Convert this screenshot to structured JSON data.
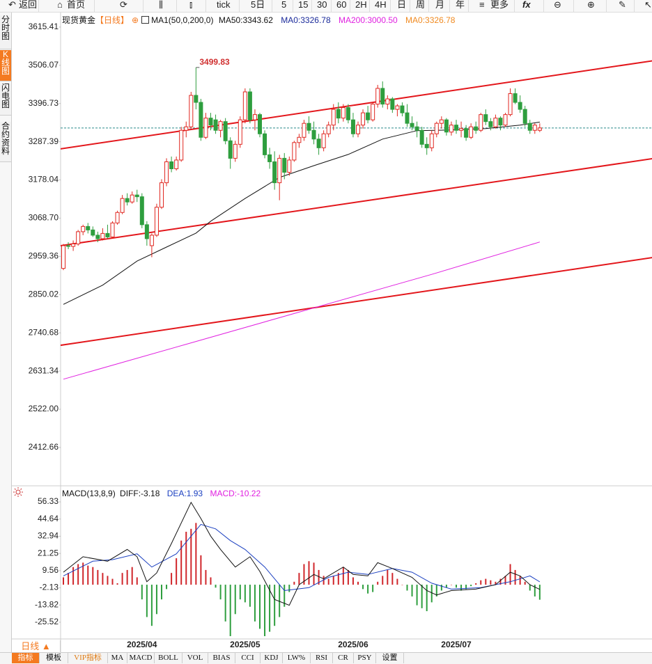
{
  "toolbar": [
    "返回",
    "首页",
    "tick",
    "5日",
    "5",
    "15",
    "30",
    "60",
    "2H",
    "4H",
    "日",
    "周",
    "月",
    "年",
    "更多",
    "fx"
  ],
  "side_tabs": [
    "分时图",
    "K线图",
    "闪电图",
    "合约资料"
  ],
  "legend": {
    "symbol": "现货黄金",
    "period": "【日线】",
    "ma_params": "MA1(50,0,200,0)",
    "ma50": "MA50:3343.62",
    "ma0": "MA0:3326.78",
    "ma200": "MA200:3000.50",
    "ma0b": "MA0:3326.78"
  },
  "macd_legend": {
    "params": "MACD(13,8,9)",
    "diff": "DIFF:-3.18",
    "dea": "DEA:1.93",
    "macd": "MACD:-10.22"
  },
  "period_button": "日线 ▲",
  "bottom_tabs": [
    "指标",
    "模板",
    "VIP指标",
    "MA",
    "MACD",
    "BOLL",
    "VOL",
    "BIAS",
    "CCI",
    "KDJ",
    "LW%",
    "RSI",
    "CR",
    "PSY",
    "设置"
  ],
  "chart_data": [
    {
      "type": "candlestick",
      "up_color": "#e0261f",
      "down_color": "#2e9e3e",
      "categories": [
        null,
        null,
        null,
        null,
        null,
        null,
        null,
        null,
        null,
        null,
        null,
        null,
        null,
        null,
        null,
        null,
        "2025/04",
        null,
        null,
        null,
        null,
        null,
        null,
        null,
        null,
        null,
        null,
        null,
        null,
        null,
        null,
        null,
        null,
        null,
        null,
        null,
        null,
        "2025/05",
        null,
        null,
        null,
        null,
        null,
        null,
        null,
        null,
        null,
        null,
        null,
        null,
        null,
        null,
        null,
        null,
        null,
        null,
        null,
        null,
        null,
        "2025/06",
        null,
        null,
        null,
        null,
        null,
        null,
        null,
        null,
        null,
        null,
        null,
        null,
        null,
        null,
        null,
        null,
        null,
        null,
        null,
        null,
        "2025/07",
        null,
        null,
        null,
        null,
        null,
        null,
        null,
        null,
        null,
        null,
        null,
        null,
        null,
        null,
        null,
        null,
        null
      ],
      "ohlc": [
        [
          2925,
          2995,
          2920,
          2990
        ],
        [
          2990,
          3000,
          2980,
          2988
        ],
        [
          2988,
          3005,
          2975,
          2995
        ],
        [
          2995,
          3035,
          2990,
          3030
        ],
        [
          3030,
          3050,
          3020,
          3045
        ],
        [
          3045,
          3055,
          3025,
          3035
        ],
        [
          3035,
          3045,
          3015,
          3020
        ],
        [
          3020,
          3030,
          3000,
          3010
        ],
        [
          3010,
          3040,
          3005,
          3025
        ],
        [
          3025,
          3050,
          3010,
          3015
        ],
        [
          3015,
          3060,
          3010,
          3055
        ],
        [
          3055,
          3090,
          3050,
          3085
        ],
        [
          3085,
          3135,
          3080,
          3125
        ],
        [
          3125,
          3140,
          3105,
          3115
        ],
        [
          3115,
          3145,
          3110,
          3135
        ],
        [
          3135,
          3150,
          3115,
          3130
        ],
        [
          3130,
          3140,
          3040,
          3050
        ],
        [
          3050,
          3060,
          2990,
          3010
        ],
        [
          2990,
          3025,
          2957,
          3020
        ],
        [
          3020,
          3110,
          3015,
          3100
        ],
        [
          3100,
          3180,
          3095,
          3170
        ],
        [
          3170,
          3240,
          3160,
          3230
        ],
        [
          3230,
          3245,
          3200,
          3210
        ],
        [
          3210,
          3245,
          3205,
          3235
        ],
        [
          3235,
          3330,
          3230,
          3320
        ],
        [
          3320,
          3345,
          3300,
          3330
        ],
        [
          3330,
          3430,
          3325,
          3420
        ],
        [
          3420,
          3499.83,
          3380,
          3400
        ],
        [
          3400,
          3410,
          3290,
          3300
        ],
        [
          3300,
          3370,
          3295,
          3355
        ],
        [
          3355,
          3370,
          3320,
          3335
        ],
        [
          3350,
          3365,
          3310,
          3320
        ],
        [
          3320,
          3350,
          3300,
          3345
        ],
        [
          3345,
          3355,
          3280,
          3290
        ],
        [
          3290,
          3300,
          3210,
          3240
        ],
        [
          3240,
          3290,
          3230,
          3280
        ],
        [
          3280,
          3360,
          3270,
          3350
        ],
        [
          3350,
          3440,
          3340,
          3430
        ],
        [
          3430,
          3440,
          3340,
          3350
        ],
        [
          3350,
          3380,
          3320,
          3365
        ],
        [
          3365,
          3370,
          3300,
          3310
        ],
        [
          3310,
          3320,
          3240,
          3250
        ],
        [
          3250,
          3270,
          3210,
          3230
        ],
        [
          3230,
          3260,
          3150,
          3170
        ],
        [
          3170,
          3250,
          3120,
          3240
        ],
        [
          3240,
          3255,
          3180,
          3200
        ],
        [
          3200,
          3245,
          3190,
          3235
        ],
        [
          3235,
          3290,
          3230,
          3285
        ],
        [
          3285,
          3310,
          3270,
          3300
        ],
        [
          3300,
          3350,
          3290,
          3340
        ],
        [
          3340,
          3360,
          3310,
          3320
        ],
        [
          3320,
          3345,
          3280,
          3295
        ],
        [
          3295,
          3310,
          3250,
          3270
        ],
        [
          3270,
          3320,
          3260,
          3310
        ],
        [
          3310,
          3345,
          3300,
          3335
        ],
        [
          3335,
          3395,
          3320,
          3380
        ],
        [
          3380,
          3400,
          3340,
          3355
        ],
        [
          3355,
          3395,
          3345,
          3385
        ],
        [
          3385,
          3395,
          3340,
          3350
        ],
        [
          3350,
          3370,
          3300,
          3310
        ],
        [
          3310,
          3345,
          3300,
          3335
        ],
        [
          3335,
          3380,
          3325,
          3370
        ],
        [
          3370,
          3390,
          3340,
          3350
        ],
        [
          3350,
          3400,
          3345,
          3395
        ],
        [
          3395,
          3450,
          3385,
          3440
        ],
        [
          3440,
          3460,
          3385,
          3395
        ],
        [
          3395,
          3420,
          3380,
          3410
        ],
        [
          3410,
          3415,
          3370,
          3380
        ],
        [
          3380,
          3395,
          3360,
          3390
        ],
        [
          3390,
          3400,
          3360,
          3370
        ],
        [
          3370,
          3395,
          3330,
          3340
        ],
        [
          3340,
          3360,
          3320,
          3330
        ],
        [
          3330,
          3345,
          3300,
          3320
        ],
        [
          3320,
          3330,
          3270,
          3280
        ],
        [
          3280,
          3300,
          3250,
          3270
        ],
        [
          3270,
          3320,
          3260,
          3310
        ],
        [
          3310,
          3345,
          3300,
          3340
        ],
        [
          3340,
          3360,
          3325,
          3350
        ],
        [
          3350,
          3355,
          3305,
          3315
        ],
        [
          3315,
          3345,
          3305,
          3335
        ],
        [
          3335,
          3350,
          3310,
          3320
        ],
        [
          3320,
          3345,
          3300,
          3325
        ],
        [
          3325,
          3335,
          3290,
          3300
        ],
        [
          3300,
          3340,
          3295,
          3330
        ],
        [
          3330,
          3345,
          3310,
          3320
        ],
        [
          3320,
          3370,
          3315,
          3365
        ],
        [
          3365,
          3380,
          3335,
          3345
        ],
        [
          3345,
          3355,
          3320,
          3330
        ],
        [
          3330,
          3365,
          3325,
          3355
        ],
        [
          3355,
          3360,
          3320,
          3335
        ],
        [
          3335,
          3370,
          3330,
          3365
        ],
        [
          3365,
          3440,
          3360,
          3425
        ],
        [
          3425,
          3440,
          3395,
          3400
        ],
        [
          3400,
          3420,
          3370,
          3380
        ],
        [
          3380,
          3390,
          3330,
          3340
        ],
        [
          3340,
          3350,
          3310,
          3320
        ],
        [
          3320,
          3340,
          3310,
          3335
        ],
        [
          3320,
          3340,
          3315,
          3326.78
        ]
      ],
      "ma50": {
        "color": "#111111",
        "x": [
          0,
          8,
          15,
          21,
          27,
          30,
          37,
          44,
          51,
          58,
          65,
          72,
          79,
          86,
          93,
          97
        ],
        "values": [
          2822,
          2877,
          2946,
          2986,
          3026,
          3060,
          3125,
          3185,
          3219,
          3251,
          3295,
          3319,
          3321,
          3325,
          3335,
          3343.62
        ]
      },
      "ma200": {
        "color": "#e020e0",
        "x": [
          0,
          25,
          50,
          75,
          97
        ],
        "values": [
          2608,
          2708,
          2808,
          2908,
          3000.5
        ]
      },
      "trend_lines": [
        {
          "color": "#e3161b",
          "x": [
            -0.6,
            120
          ],
          "values": [
            3267,
            3519
          ]
        },
        {
          "color": "#e3161b",
          "x": [
            -0.6,
            120
          ],
          "values": [
            2990,
            3239
          ]
        },
        {
          "color": "#e3161b",
          "x": [
            -0.6,
            120
          ],
          "values": [
            2705,
            2956
          ]
        }
      ],
      "price_line": 3326.78,
      "ylim": [
        2303,
        3653
      ],
      "yticks": [
        3615.41,
        3506.07,
        3396.73,
        3287.39,
        3178.04,
        {
          "value": 3068.7,
          "label": "3068.70"
        },
        2959.36,
        2850.02,
        2740.68,
        2631.34,
        {
          "value": 2522,
          "label": "2522.00"
        },
        2412.66
      ]
    },
    {
      "type": "macd",
      "up_color": "#d0262b",
      "down_color": "#2e9e3e",
      "histogram": [
        5,
        8,
        12,
        14,
        15,
        13,
        12,
        10,
        8,
        6,
        4,
        1,
        8,
        10,
        12,
        5,
        -10,
        -22,
        -28,
        -20,
        -10,
        -3,
        8,
        18,
        30,
        36,
        38,
        42,
        20,
        10,
        5,
        -2,
        -10,
        -25,
        -35,
        -20,
        -10,
        -12,
        -15,
        -25,
        -30,
        -35,
        -32,
        -28,
        -22,
        -15,
        -5,
        2,
        8,
        14,
        16,
        15,
        10,
        6,
        4,
        6,
        8,
        12,
        10,
        5,
        2,
        -3,
        -6,
        -5,
        2,
        6,
        10,
        8,
        4,
        0,
        -4,
        -8,
        -14,
        -16,
        -18,
        -12,
        -8,
        -4,
        -2,
        0,
        -2,
        -4,
        -3,
        -1,
        1,
        3,
        4,
        3,
        2,
        4,
        6,
        14,
        10,
        6,
        2,
        -4,
        -8,
        -10.22
      ],
      "diff": {
        "color": "#111111",
        "x": [
          0,
          4,
          9,
          13,
          15,
          17,
          19,
          22,
          26,
          28,
          30,
          32,
          35,
          38,
          40,
          43,
          46,
          48,
          51,
          53,
          57,
          59,
          62,
          64,
          67,
          71,
          74,
          76,
          79,
          84,
          88,
          91,
          93,
          95,
          97
        ],
        "values": [
          8.5,
          19,
          16,
          24,
          19,
          2,
          8,
          28,
          56,
          45,
          33,
          24,
          12,
          19,
          9,
          -10,
          -14,
          0,
          7,
          4,
          12,
          7,
          6,
          15,
          11,
          5,
          -4,
          -7,
          -4,
          -3,
          0,
          8.5,
          6,
          0,
          -3.18
        ]
      },
      "dea": {
        "color": "#1a3fc0",
        "x": [
          0,
          6,
          10,
          15,
          18,
          23,
          28,
          31,
          34,
          37,
          41,
          45,
          50,
          54,
          58,
          62,
          67,
          71,
          75,
          79,
          85,
          91,
          95,
          97
        ],
        "values": [
          6,
          16,
          17,
          21,
          12,
          21,
          41,
          38,
          30,
          24,
          12,
          -4,
          -2,
          5,
          8.5,
          7,
          11,
          8.5,
          1,
          -3,
          -2,
          2,
          6,
          1.93
        ]
      },
      "ylim": [
        -36.9,
        66.3
      ],
      "yticks": [
        56.33,
        44.64,
        32.94,
        21.25,
        9.56,
        -2.13,
        -13.82,
        -25.52
      ]
    }
  ]
}
